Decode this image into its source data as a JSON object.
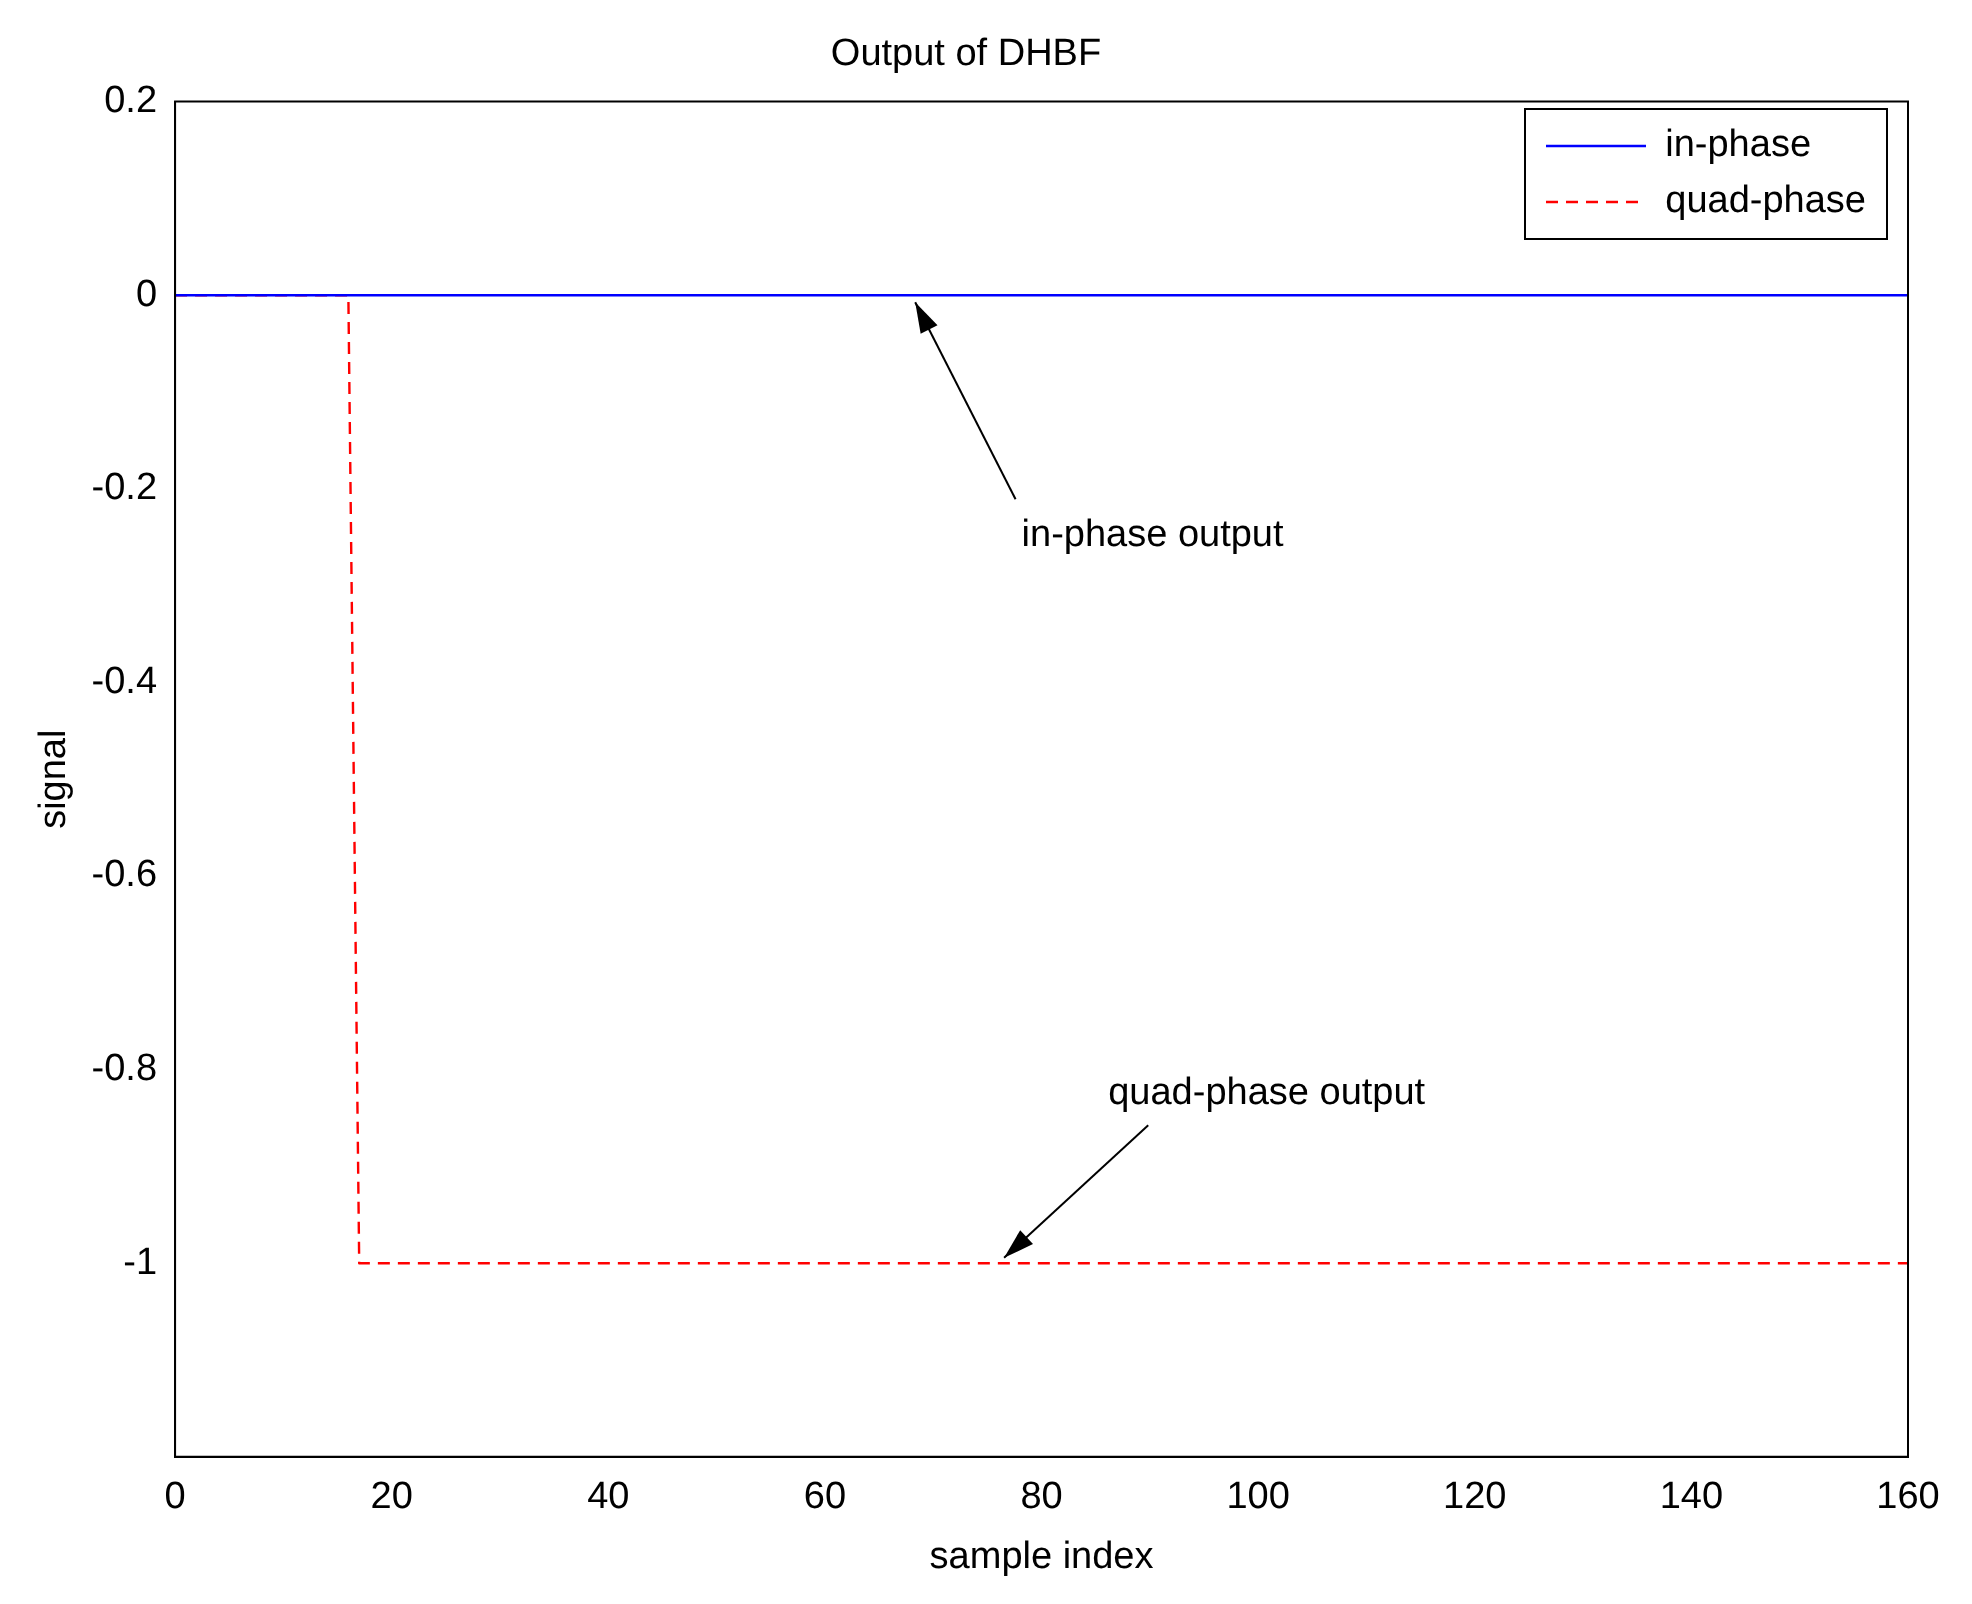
{
  "chart_data": {
    "type": "line",
    "title": "Output of DHBF",
    "xlabel": "sample index",
    "ylabel": "signal",
    "series": [
      {
        "name": "in-phase",
        "color": "#0000ff",
        "x": [
          0,
          160
        ],
        "values": [
          0,
          0
        ],
        "line_style": "solid"
      },
      {
        "name": "quad-phase",
        "color": "#ff0000",
        "x": [
          0,
          16,
          17,
          160
        ],
        "values": [
          0,
          0,
          -1,
          -1
        ],
        "line_style": "dashed"
      }
    ],
    "xlim": [
      0,
      160
    ],
    "xticks": [
      0,
      20,
      40,
      60,
      80,
      100,
      120,
      140,
      160
    ],
    "ylim": [
      -1.2,
      0.2
    ],
    "yticks": [
      0.2,
      0,
      -0.2,
      -0.4,
      -0.6,
      -0.8,
      -1
    ],
    "grid": false,
    "legend": "top right",
    "marker": "none",
    "annotations": [
      {
        "text": "in-phase output",
        "x": 68,
        "y": 0
      },
      {
        "text": "quad-phase output",
        "x": 76,
        "y": -1
      }
    ]
  }
}
